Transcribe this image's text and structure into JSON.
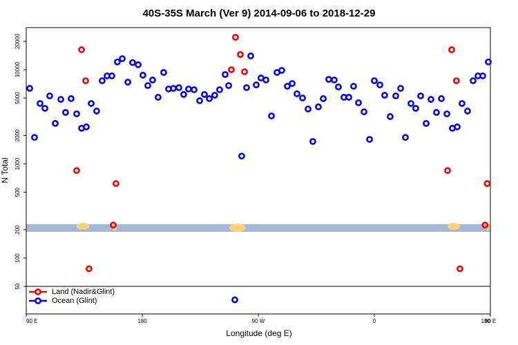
{
  "chart_data": {
    "type": "scatter",
    "log_y": true,
    "legend": "bottom-left",
    "title": "40S-35S March (Ver 9)   2014-09-06 to 2018-12-29",
    "x_label": "Longitude (deg E)",
    "y_label": "N Total",
    "xlim": [
      90,
      450
    ],
    "xticks": [
      {
        "value": 90,
        "label": "90 E"
      },
      {
        "value": 180,
        "label": "180"
      },
      {
        "value": 270,
        "label": "90 W"
      },
      {
        "value": 360,
        "label": "0"
      },
      {
        "value": 450,
        "label": "90 E"
      },
      {
        "value": 540,
        "label": "180"
      }
    ],
    "ylim": [
      25.5,
      28000
    ],
    "yticks": [
      50,
      100,
      200,
      500,
      1000,
      2000,
      5000,
      10000,
      20000
    ],
    "series": [
      {
        "name": "Land (Nadir&Glint)",
        "color": "#ee0000",
        "x": [
          132.9,
          136.1,
          129.1,
          138.7,
          159.6,
          157.5,
          249.1,
          252.3,
          256.1,
          259.3,
          420.0,
          423.7,
          416.8,
          426.4,
          447.5,
          445.9
        ],
        "values": [
          16300,
          7640,
          850,
          77,
          618,
          224,
          10000,
          22100,
          14500,
          9510,
          16300,
          7640,
          850,
          77,
          618,
          224
        ]
      },
      {
        "name": "Ocean (Glint)",
        "color": "#0000ee",
        "x": [
          92.7,
          96.4,
          100.7,
          104.5,
          108.2,
          112.5,
          116.8,
          120.5,
          124.8,
          129.1,
          132.9,
          136.6,
          140.4,
          144.6,
          148.9,
          152.7,
          156.4,
          160.7,
          164.5,
          168.8,
          172.5,
          176.8,
          180.5,
          184.3,
          188.0,
          192.3,
          196.6,
          200.4,
          204.1,
          208.4,
          212.1,
          215.9,
          220.2,
          224.5,
          228.2,
          232.0,
          236.2,
          240.0,
          244.3,
          247.0,
          257.1,
          260.9,
          264.1,
          268.4,
          272.1,
          275.9,
          280.2,
          284.5,
          288.2,
          292.5,
          296.3,
          300.0,
          304.3,
          308.6,
          312.3,
          316.6,
          320.4,
          324.6,
          328.9,
          332.1,
          336.4,
          340.2,
          343.9,
          347.7,
          352.0,
          356.3,
          360.0,
          364.3,
          368.0,
          372.3,
          376.6,
          380.4,
          384.1,
          388.4,
          392.1,
          395.9,
          400.2,
          403.9,
          408.2,
          412.0,
          416.3,
          420.5,
          424.3,
          428.0,
          432.3,
          436.6,
          440.4,
          444.1,
          448.4,
          251.8
        ],
        "values": [
          6340,
          1910,
          4380,
          3890,
          5270,
          2690,
          4840,
          3520,
          4930,
          3400,
          2390,
          2470,
          4380,
          3640,
          7640,
          8600,
          8600,
          12100,
          13100,
          7380,
          11900,
          11300,
          8750,
          6790,
          7780,
          5100,
          9350,
          6240,
          6340,
          6450,
          5460,
          6240,
          6130,
          4690,
          5460,
          4930,
          5360,
          6130,
          8890,
          6790,
          1210,
          6450,
          14000,
          6900,
          8170,
          7780,
          3230,
          9350,
          9840,
          6670,
          7140,
          5550,
          5010,
          3830,
          1730,
          4030,
          4930,
          7900,
          7780,
          6560,
          5100,
          5100,
          6670,
          4460,
          3570,
          1820,
          7640,
          6900,
          5360,
          3180,
          5270,
          6340,
          1910,
          4380,
          3890,
          5270,
          2690,
          4840,
          3520,
          4930,
          3400,
          2390,
          2470,
          4380,
          3640,
          7640,
          8600,
          8600,
          12100,
          36
        ]
      }
    ]
  }
}
